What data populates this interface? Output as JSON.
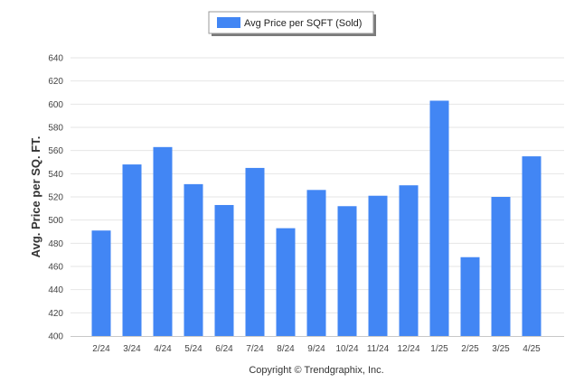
{
  "chart_data": {
    "type": "bar",
    "legend": {
      "label": "Avg Price per SQFT (Sold)",
      "placement": "top-center"
    },
    "ylabel": "Avg. Price per SQ. FT.",
    "xlabel": "",
    "ylim": [
      400,
      640
    ],
    "yticks": [
      400,
      420,
      440,
      460,
      480,
      500,
      520,
      540,
      560,
      580,
      600,
      620,
      640
    ],
    "grid": true,
    "categories": [
      "2/24",
      "3/24",
      "4/24",
      "5/24",
      "6/24",
      "7/24",
      "8/24",
      "9/24",
      "10/24",
      "11/24",
      "12/24",
      "1/25",
      "2/25",
      "3/25",
      "4/25"
    ],
    "series": [
      {
        "name": "Avg Price per SQFT (Sold)",
        "color": "#4286f4",
        "values": [
          491,
          548,
          563,
          531,
          513,
          545,
          493,
          526,
          512,
          521,
          530,
          603,
          468,
          520,
          555
        ]
      }
    ]
  },
  "footer": {
    "copyright": "Copyright © Trendgraphix, Inc."
  }
}
